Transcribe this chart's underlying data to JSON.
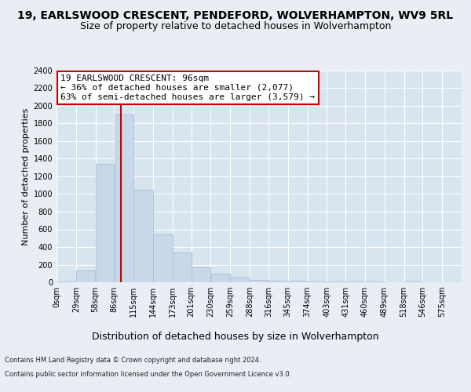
{
  "title": "19, EARLSWOOD CRESCENT, PENDEFORD, WOLVERHAMPTON, WV9 5RL",
  "subtitle": "Size of property relative to detached houses in Wolverhampton",
  "xlabel": "Distribution of detached houses by size in Wolverhampton",
  "ylabel": "Number of detached properties",
  "footer_line1": "Contains HM Land Registry data © Crown copyright and database right 2024.",
  "footer_line2": "Contains public sector information licensed under the Open Government Licence v3.0.",
  "bar_color": "#c8d8e8",
  "bar_edgecolor": "#a8c0d8",
  "annotation_text": "19 EARLSWOOD CRESCENT: 96sqm\n← 36% of detached houses are smaller (2,077)\n63% of semi-detached houses are larger (3,579) →",
  "property_size_sqm": 96,
  "bar_left_edges": [
    0,
    29,
    58,
    86,
    115,
    144,
    173,
    201,
    230,
    259,
    288,
    316,
    345,
    374,
    403,
    431,
    460,
    489,
    518,
    546
  ],
  "bar_widths": [
    29,
    29,
    28,
    29,
    29,
    29,
    28,
    29,
    29,
    29,
    28,
    29,
    29,
    29,
    28,
    29,
    29,
    29,
    28,
    29
  ],
  "bar_heights": [
    5,
    130,
    1340,
    1900,
    1050,
    540,
    335,
    165,
    100,
    50,
    30,
    20,
    15,
    10,
    10,
    5,
    5,
    0,
    5,
    0
  ],
  "tick_labels": [
    "0sqm",
    "29sqm",
    "58sqm",
    "86sqm",
    "115sqm",
    "144sqm",
    "173sqm",
    "201sqm",
    "230sqm",
    "259sqm",
    "288sqm",
    "316sqm",
    "345sqm",
    "374sqm",
    "403sqm",
    "431sqm",
    "460sqm",
    "489sqm",
    "518sqm",
    "546sqm",
    "575sqm"
  ],
  "ylim": [
    0,
    2400
  ],
  "yticks": [
    0,
    200,
    400,
    600,
    800,
    1000,
    1200,
    1400,
    1600,
    1800,
    2000,
    2200,
    2400
  ],
  "grid_color": "#ffffff",
  "bg_color": "#e8eef4",
  "plot_bg_color": "#d8e4ee",
  "vline_color": "#cc0000",
  "vline_x": 96,
  "annotation_box_facecolor": "#ffffff",
  "annotation_box_edgecolor": "#cc0000",
  "title_fontsize": 10,
  "subtitle_fontsize": 9,
  "ylabel_fontsize": 8,
  "xlabel_fontsize": 9,
  "tick_fontsize": 7,
  "annotation_fontsize": 8,
  "footer_fontsize": 6
}
